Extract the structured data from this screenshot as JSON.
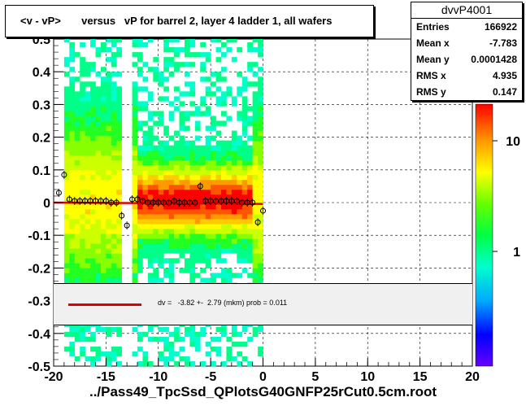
{
  "title": "<v - vP>       versus   vP for barrel 2, layer 4 ladder 1, all wafers",
  "stats": {
    "name": "dvvP4001",
    "rows": [
      {
        "key": "Entries",
        "value": "166922"
      },
      {
        "key": "Mean x",
        "value": "-7.783"
      },
      {
        "key": "Mean y",
        "value": "0.0001428"
      },
      {
        "key": "RMS x",
        "value": "4.935"
      },
      {
        "key": "RMS y",
        "value": "0.147"
      }
    ]
  },
  "legend": {
    "fit_text": "dv =   -3.82 +-  2.79 (mkm) prob = 0.011",
    "fit_color": "#e00000"
  },
  "xlabel": "../Pass49_TpcSsd_QPlotsG40GNFP25rCut0.5cm.root",
  "chart_data": {
    "type": "heatmap",
    "xlim": [
      -20,
      20
    ],
    "ylim": [
      -0.5,
      0.5
    ],
    "x_ticks": [
      "-20",
      "-15",
      "-10",
      "-5",
      "0",
      "5",
      "10",
      "15",
      "20"
    ],
    "y_ticks": [
      "-0.5",
      "-0.4",
      "-0.3",
      "-0.2",
      "-0.1",
      "0",
      "0.1",
      "0.2",
      "0.3",
      "0.4",
      "0.5"
    ],
    "colorbar_ticks": [
      "1",
      "10"
    ],
    "grid": true,
    "fit_line": {
      "x": [
        -20,
        0
      ],
      "y": [
        0.0,
        -0.004
      ]
    },
    "profile_points": {
      "x": [
        -19.5,
        -19,
        -18.5,
        -18,
        -17.5,
        -17,
        -16.5,
        -16,
        -15.5,
        -15,
        -14.5,
        -14,
        -13.5,
        -13,
        -12.5,
        -12,
        -11.5,
        -11,
        -10.5,
        -10,
        -9.5,
        -9,
        -8.5,
        -8,
        -7.5,
        -7,
        -6.5,
        -6,
        -5.5,
        -5,
        -4.5,
        -4,
        -3.5,
        -3,
        -2.5,
        -2,
        -1.5,
        -1,
        -0.5,
        0
      ],
      "y": [
        0.03,
        0.085,
        0.01,
        0.005,
        0.005,
        0.005,
        0.005,
        0.005,
        0.005,
        0.005,
        0.0,
        0.0,
        -0.04,
        -0.07,
        0.01,
        0.01,
        0.005,
        0.0,
        0.0,
        0.0,
        0.0,
        0.0,
        0.005,
        0.0,
        0.0,
        0.0,
        0.0,
        0.05,
        0.005,
        0.005,
        0.005,
        0.005,
        0.005,
        0.005,
        0.005,
        0.0,
        0.0,
        0.0,
        -0.06,
        -0.025
      ]
    }
  }
}
